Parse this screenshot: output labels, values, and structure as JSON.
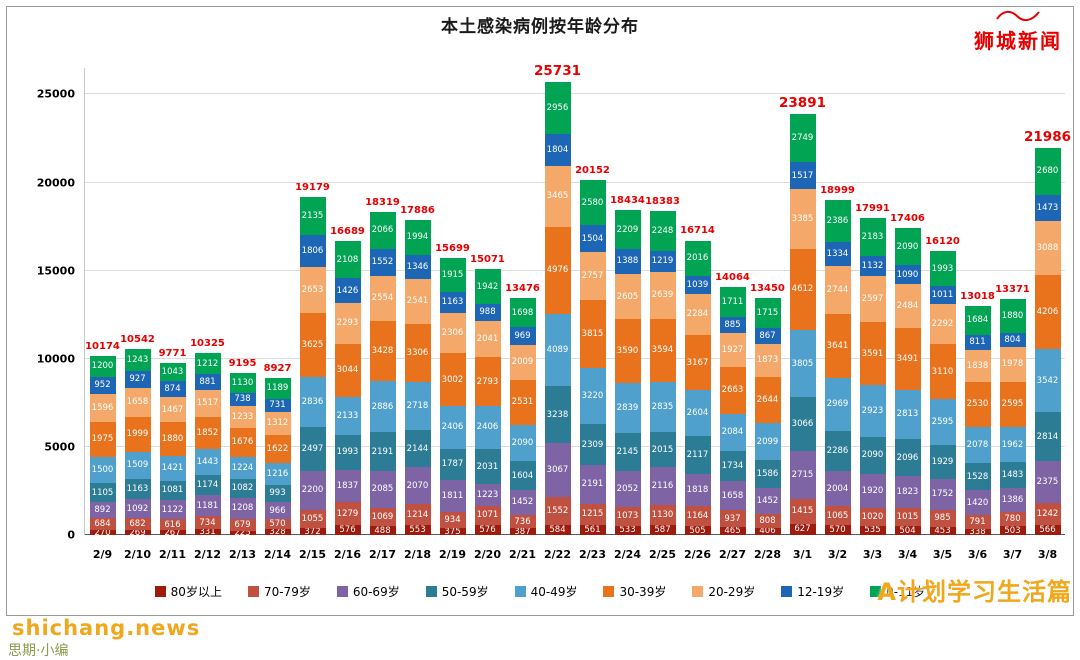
{
  "page": {
    "title": "本土感染病例按年龄分布",
    "brand_logo": "狮城新闻",
    "watermark_site": "shichang.news",
    "watermark_corner": "思期·小编",
    "watermark_overlay": "A计划学习生活篇"
  },
  "chart_data": {
    "type": "bar",
    "stacked": true,
    "title": "本土感染病例按年龄分布",
    "grid": true,
    "legend_position": "bottom",
    "ylim": [
      0,
      26500
    ],
    "y_ticks": [
      0,
      5000,
      10000,
      15000,
      20000,
      25000
    ],
    "total_label_color": "#e60000",
    "categories": [
      "2/9",
      "2/10",
      "2/11",
      "2/12",
      "2/13",
      "2/14",
      "2/15",
      "2/16",
      "2/17",
      "2/18",
      "2/19",
      "2/20",
      "2/21",
      "2/22",
      "2/23",
      "2/24",
      "2/25",
      "2/26",
      "2/27",
      "2/28",
      "3/1",
      "3/2",
      "3/3",
      "3/4",
      "3/5",
      "3/6",
      "3/7",
      "3/8"
    ],
    "totals": [
      10174,
      10542,
      9771,
      10325,
      9195,
      8927,
      19179,
      16689,
      18319,
      17886,
      15699,
      15071,
      13476,
      25731,
      20152,
      18434,
      18383,
      16714,
      14064,
      13450,
      23891,
      18999,
      17991,
      17406,
      16120,
      13018,
      13371,
      21986
    ],
    "series": [
      {
        "name": "80岁以上",
        "color": "#9e1b0e",
        "values": [
          270,
          269,
          267,
          331,
          225,
          328,
          372,
          576,
          488,
          553,
          375,
          576,
          387,
          584,
          561,
          533,
          587,
          505,
          465,
          406,
          627,
          570,
          535,
          504,
          453,
          338,
          503,
          566
        ]
      },
      {
        "name": "70-79岁",
        "color": "#c0503f",
        "values": [
          684,
          682,
          616,
          734,
          679,
          570,
          1055,
          1279,
          1069,
          1214,
          934,
          1071,
          736,
          1552,
          1215,
          1073,
          1130,
          1164,
          937,
          808,
          1415,
          1065,
          1020,
          1015,
          985,
          791,
          780,
          1242
        ]
      },
      {
        "name": "60-69岁",
        "color": "#7e64a5",
        "values": [
          892,
          1092,
          1122,
          1181,
          1208,
          966,
          2200,
          1837,
          2085,
          2070,
          1811,
          1223,
          1452,
          3067,
          2191,
          2052,
          2116,
          1818,
          1658,
          1452,
          2715,
          2004,
          1920,
          1823,
          1752,
          1420,
          1386,
          2375
        ]
      },
      {
        "name": "50-59岁",
        "color": "#2c7c95",
        "values": [
          1105,
          1163,
          1081,
          1174,
          1082,
          993,
          2497,
          1993,
          2191,
          2144,
          1787,
          2031,
          1604,
          3238,
          2309,
          2145,
          2015,
          2117,
          1734,
          1586,
          3066,
          2286,
          2090,
          2096,
          1929,
          1528,
          1483,
          2814
        ]
      },
      {
        "name": "40-49岁",
        "color": "#4fa0cc",
        "values": [
          1500,
          1509,
          1421,
          1443,
          1224,
          1216,
          2836,
          2133,
          2886,
          2718,
          2406,
          2406,
          2090,
          4089,
          3220,
          2839,
          2835,
          2604,
          2084,
          2099,
          3805,
          2969,
          2923,
          2813,
          2595,
          2078,
          1962,
          3542
        ]
      },
      {
        "name": "30-39岁",
        "color": "#e9731d",
        "values": [
          1975,
          1999,
          1880,
          1852,
          1676,
          1622,
          3625,
          3044,
          3428,
          3306,
          3002,
          2793,
          2531,
          4976,
          3815,
          3590,
          3594,
          3167,
          2663,
          2644,
          4612,
          3641,
          3591,
          3491,
          3110,
          2530,
          2595,
          4206
        ]
      },
      {
        "name": "20-29岁",
        "color": "#f4a869",
        "values": [
          1596,
          1658,
          1467,
          1517,
          1233,
          1312,
          2653,
          2293,
          2554,
          2541,
          2306,
          2041,
          2009,
          3465,
          2757,
          2605,
          2639,
          2284,
          1927,
          1873,
          3385,
          2744,
          2597,
          2484,
          2292,
          1838,
          1978,
          3088
        ]
      },
      {
        "name": "12-19岁",
        "color": "#1d66b5",
        "values": [
          952,
          927,
          874,
          881,
          738,
          731,
          1806,
          1426,
          1552,
          1346,
          1163,
          988,
          969,
          1804,
          1504,
          1388,
          1219,
          1039,
          885,
          867,
          1517,
          1334,
          1132,
          1090,
          1011,
          811,
          804,
          1473
        ]
      },
      {
        "name": "0-11岁",
        "color": "#00a453",
        "values": [
          1200,
          1243,
          1043,
          1212,
          1130,
          1189,
          2135,
          2108,
          2066,
          1994,
          1915,
          1942,
          1698,
          2956,
          2580,
          2209,
          2248,
          2016,
          1711,
          1715,
          2749,
          2386,
          2183,
          2090,
          1993,
          1684,
          1880,
          2680
        ]
      }
    ]
  }
}
